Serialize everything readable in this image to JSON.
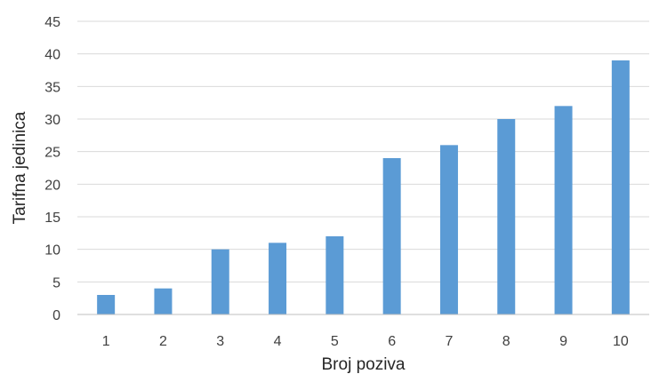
{
  "chart_data": {
    "type": "bar",
    "categories": [
      "1",
      "2",
      "3",
      "4",
      "5",
      "6",
      "7",
      "8",
      "9",
      "10"
    ],
    "values": [
      3,
      4,
      10,
      11,
      12,
      24,
      26,
      30,
      32,
      39
    ],
    "xlabel": "Broj poziva",
    "ylabel": "Tarifna jedinica",
    "ylim": [
      0,
      45
    ],
    "yticks": [
      0,
      5,
      10,
      15,
      20,
      25,
      30,
      35,
      40,
      45
    ],
    "grid": true,
    "legend": "none",
    "colors": {
      "bar": "#5b9bd5",
      "gridline": "#d9d9d9",
      "axis": "#bfbfbf"
    }
  }
}
